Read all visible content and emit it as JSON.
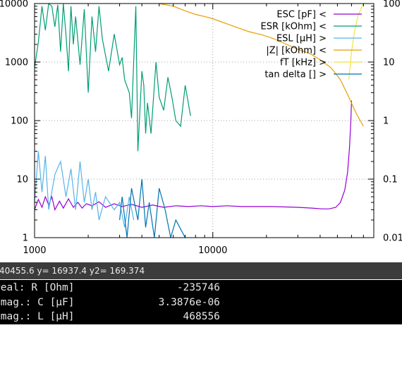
{
  "chart_data": {
    "type": "line",
    "x_scale": "log",
    "y_scale": "log",
    "y2_scale": "log",
    "xlim": [
      1000,
      80000
    ],
    "ylim": [
      1,
      10000
    ],
    "y2lim": [
      0.01,
      100
    ],
    "x_ticks": [
      "1000",
      "10000"
    ],
    "y_ticks": [
      "1",
      "10",
      "100",
      "1000",
      "10000"
    ],
    "y2_ticks": [
      "0.01",
      "0.1",
      "1",
      "10",
      "100"
    ],
    "grid": true,
    "legend_position": "top-right",
    "series": [
      {
        "name": "ESC [pF] <",
        "color": "#9400d3",
        "axis": "y1",
        "points": [
          [
            1000,
            3.0
          ],
          [
            1050,
            4.5
          ],
          [
            1100,
            3.3
          ],
          [
            1150,
            5.0
          ],
          [
            1200,
            3.6
          ],
          [
            1250,
            5.0
          ],
          [
            1300,
            3.0
          ],
          [
            1380,
            4.2
          ],
          [
            1450,
            3.2
          ],
          [
            1550,
            4.6
          ],
          [
            1650,
            3.3
          ],
          [
            1750,
            4.0
          ],
          [
            1850,
            3.2
          ],
          [
            1950,
            3.8
          ],
          [
            2100,
            3.5
          ],
          [
            2300,
            4.1
          ],
          [
            2500,
            3.3
          ],
          [
            2800,
            3.8
          ],
          [
            3100,
            3.4
          ],
          [
            3500,
            3.7
          ],
          [
            4000,
            3.3
          ],
          [
            4600,
            3.6
          ],
          [
            5300,
            3.3
          ],
          [
            6200,
            3.5
          ],
          [
            7300,
            3.4
          ],
          [
            8600,
            3.5
          ],
          [
            10000,
            3.4
          ],
          [
            12000,
            3.5
          ],
          [
            14500,
            3.4
          ],
          [
            17500,
            3.4
          ],
          [
            21000,
            3.4
          ],
          [
            25000,
            3.35
          ],
          [
            30000,
            3.3
          ],
          [
            36000,
            3.2
          ],
          [
            41000,
            3.1
          ],
          [
            45000,
            3.1
          ],
          [
            49000,
            3.3
          ],
          [
            52000,
            4.0
          ],
          [
            55000,
            6.5
          ],
          [
            57000,
            13
          ],
          [
            58500,
            35
          ],
          [
            59500,
            100
          ],
          [
            60000,
            220
          ]
        ]
      },
      {
        "name": "ESR [kOhm] <",
        "color": "#009e73",
        "axis": "y1",
        "points": [
          [
            1000,
            800
          ],
          [
            1050,
            2200
          ],
          [
            1100,
            9000
          ],
          [
            1150,
            3500
          ],
          [
            1200,
            10000
          ],
          [
            1250,
            9000
          ],
          [
            1300,
            4000
          ],
          [
            1350,
            9500
          ],
          [
            1400,
            1500
          ],
          [
            1450,
            10000
          ],
          [
            1500,
            3000
          ],
          [
            1550,
            700
          ],
          [
            1600,
            9000
          ],
          [
            1650,
            2000
          ],
          [
            1700,
            6000
          ],
          [
            1800,
            900
          ],
          [
            1900,
            8000
          ],
          [
            2000,
            300
          ],
          [
            2100,
            6000
          ],
          [
            2200,
            1500
          ],
          [
            2300,
            9000
          ],
          [
            2400,
            2500
          ],
          [
            2600,
            700
          ],
          [
            2800,
            3000
          ],
          [
            3000,
            900
          ],
          [
            3100,
            1200
          ],
          [
            3200,
            500
          ],
          [
            3400,
            300
          ],
          [
            3500,
            110
          ],
          [
            3700,
            9000
          ],
          [
            3800,
            30
          ],
          [
            3900,
            150
          ],
          [
            4000,
            700
          ],
          [
            4100,
            400
          ],
          [
            4200,
            60
          ],
          [
            4300,
            200
          ],
          [
            4500,
            60
          ],
          [
            4800,
            1000
          ],
          [
            5000,
            250
          ],
          [
            5300,
            150
          ],
          [
            5600,
            550
          ],
          [
            5900,
            250
          ],
          [
            6200,
            100
          ],
          [
            6600,
            80
          ],
          [
            7000,
            400
          ],
          [
            7500,
            120
          ]
        ]
      },
      {
        "name": "ESL [µH] >",
        "color": "#56b4e9",
        "axis": "y2",
        "points": [
          [
            1000,
            0.04
          ],
          [
            1050,
            0.3
          ],
          [
            1100,
            0.06
          ],
          [
            1150,
            0.25
          ],
          [
            1200,
            0.03
          ],
          [
            1300,
            0.12
          ],
          [
            1400,
            0.2
          ],
          [
            1500,
            0.05
          ],
          [
            1600,
            0.15
          ],
          [
            1700,
            0.03
          ],
          [
            1800,
            0.2
          ],
          [
            1900,
            0.04
          ],
          [
            2000,
            0.1
          ],
          [
            2100,
            0.03
          ],
          [
            2200,
            0.06
          ],
          [
            2300,
            0.02
          ],
          [
            2500,
            0.05
          ],
          [
            2800,
            0.03
          ],
          [
            3000,
            0.04
          ],
          [
            3200,
            0.015
          ],
          [
            3400,
            0.05
          ],
          [
            3600,
            0.02
          ]
        ]
      },
      {
        "name": "|Z| [kOhm] <",
        "color": "#e69f00",
        "axis": "y1",
        "points": [
          [
            4000,
            12000
          ],
          [
            4500,
            11000
          ],
          [
            5000,
            10000
          ],
          [
            6000,
            9000
          ],
          [
            7000,
            7500
          ],
          [
            8000,
            6500
          ],
          [
            9000,
            6000
          ],
          [
            10000,
            5500
          ],
          [
            12000,
            4500
          ],
          [
            14000,
            3800
          ],
          [
            16000,
            3300
          ],
          [
            19000,
            2900
          ],
          [
            22000,
            2500
          ],
          [
            26000,
            2000
          ],
          [
            30000,
            1650
          ],
          [
            35000,
            1400
          ],
          [
            40000,
            1100
          ],
          [
            46000,
            800
          ],
          [
            52000,
            500
          ],
          [
            58000,
            250
          ],
          [
            64000,
            130
          ],
          [
            70000,
            80
          ]
        ]
      },
      {
        "name": "fT [kHz] >",
        "color": "#f0e442",
        "axis": "y2",
        "points": [
          [
            58000,
            5
          ],
          [
            60000,
            15
          ],
          [
            62000,
            30
          ],
          [
            65000,
            60
          ],
          [
            70000,
            100
          ]
        ]
      },
      {
        "name": "tan delta [] >",
        "color": "#0072b2",
        "axis": "y2",
        "points": [
          [
            3000,
            0.02
          ],
          [
            3100,
            0.05
          ],
          [
            3300,
            0.01
          ],
          [
            3500,
            0.07
          ],
          [
            3800,
            0.02
          ],
          [
            4000,
            0.1
          ],
          [
            4200,
            0.015
          ],
          [
            4400,
            0.04
          ],
          [
            4700,
            0.01
          ],
          [
            5000,
            0.07
          ],
          [
            5400,
            0.03
          ],
          [
            5800,
            0.01
          ],
          [
            6200,
            0.02
          ],
          [
            7000,
            0.01
          ]
        ]
      }
    ]
  },
  "status": {
    "text": "40455.6 y= 16937.4 y2= 169.374"
  },
  "terminal": {
    "lines": [
      {
        "label": "real: R [Ohm]",
        "value": "-235746"
      },
      {
        "label": "imag.: C [µF]",
        "value": "3.3876e-06"
      },
      {
        "label": "imag.: L [µH]",
        "value": "468556"
      }
    ]
  }
}
